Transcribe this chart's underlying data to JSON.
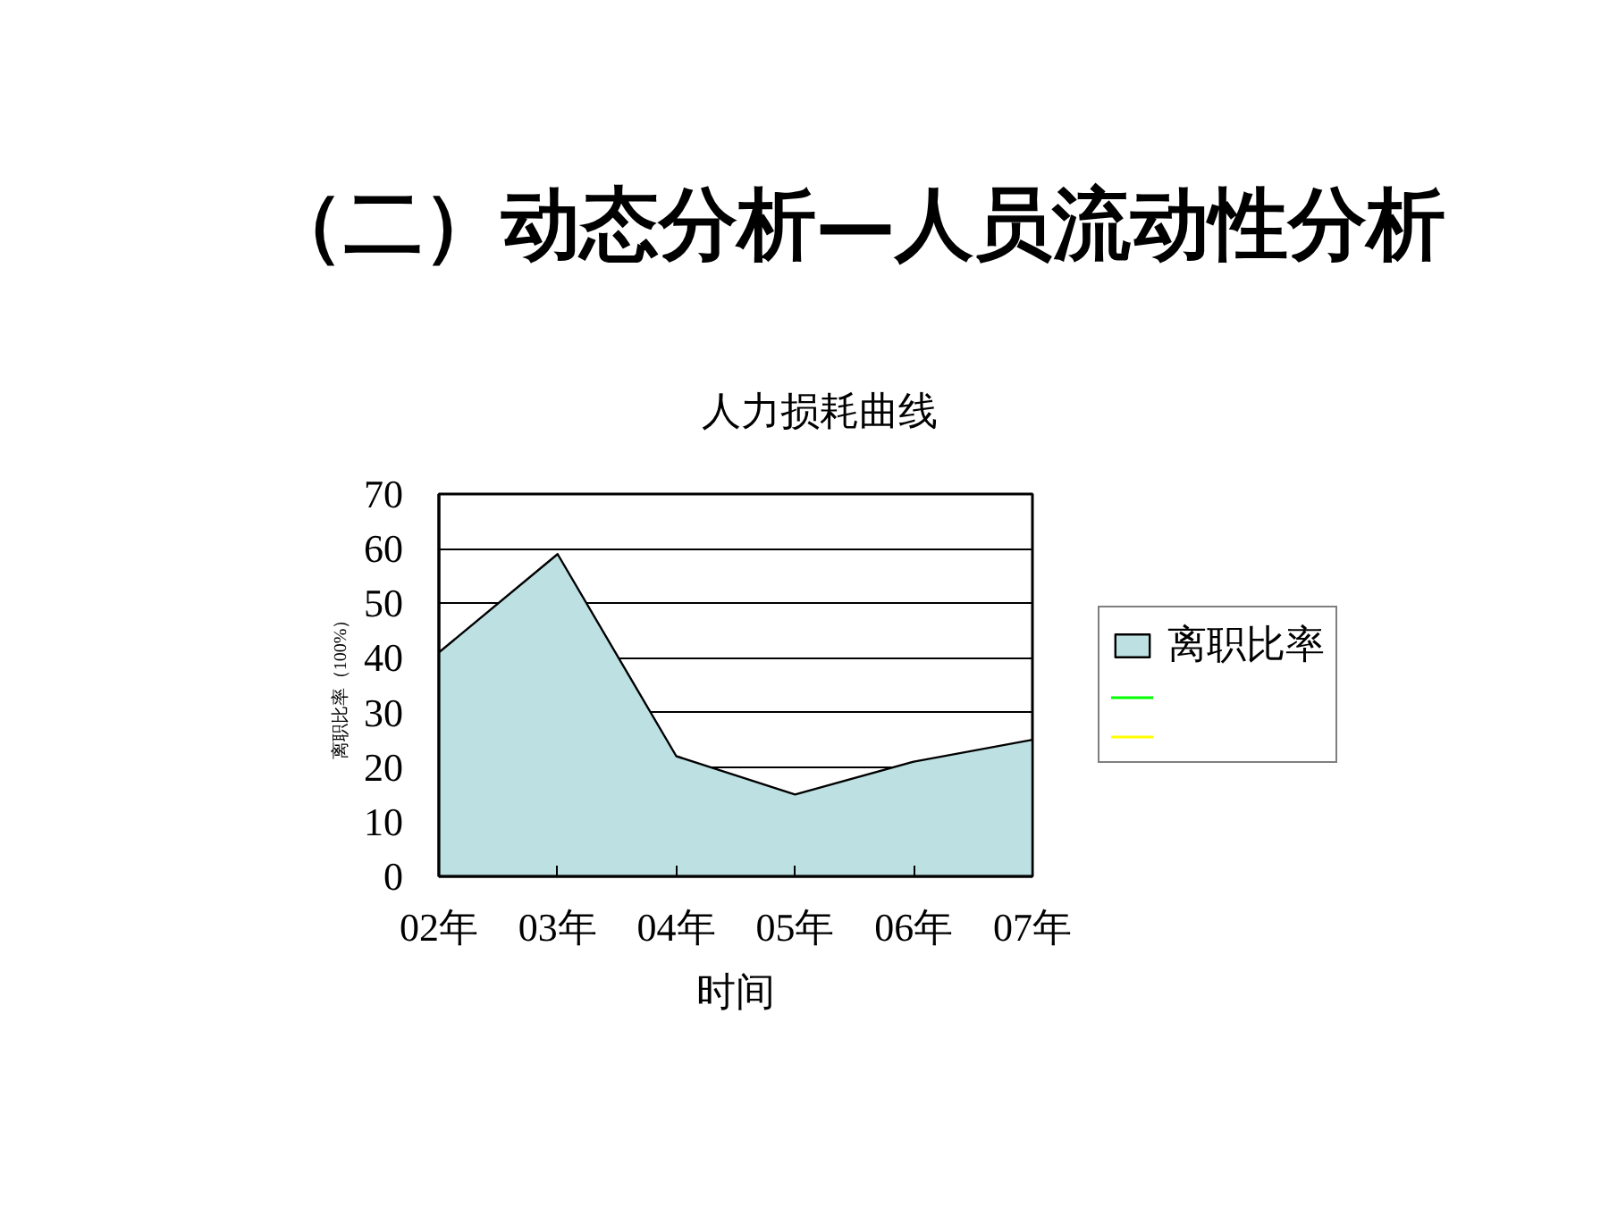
{
  "chart_data": {
    "type": "area",
    "title": "（二）动态分析—人员流动性分析",
    "subtitle": "人力损耗曲线",
    "xlabel": "时间",
    "ylabel": "离职比率（100%）",
    "categories": [
      "02年",
      "03年",
      "04年",
      "05年",
      "06年",
      "07年"
    ],
    "series": [
      {
        "name": "离职比率",
        "color": "#bde0e2",
        "values": [
          41,
          59,
          22,
          15,
          21,
          25
        ]
      },
      {
        "type": "line",
        "color": "#00ff00",
        "values": [
          null,
          null,
          null,
          null,
          null,
          null
        ]
      },
      {
        "type": "line",
        "color": "#ffff00",
        "values": [
          null,
          null,
          null,
          null,
          null,
          null
        ]
      }
    ],
    "ylim": [
      0,
      70
    ],
    "yticks": [
      0,
      10,
      20,
      30,
      40,
      50,
      60,
      70
    ],
    "grid": "y",
    "legend": "right"
  }
}
